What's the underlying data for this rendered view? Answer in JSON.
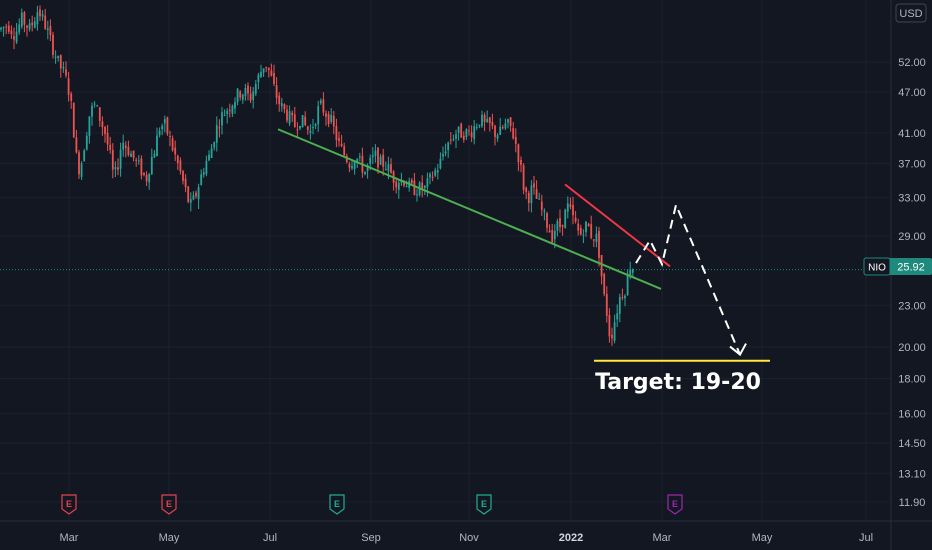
{
  "currency": "USD",
  "ticker": {
    "symbol": "NIO",
    "last": "25.92"
  },
  "colors": {
    "bg": "#131722",
    "up": "#26a69a",
    "down": "#ef5350",
    "trend_green": "#4caf50",
    "trend_red": "#f23645",
    "target_line": "#ffeb3b",
    "arrow": "#ffffff",
    "axis_text": "#b2b5be",
    "earnings_red": "#e2434f",
    "earnings_teal": "#22ab94",
    "earnings_purple": "#9c27b0"
  },
  "annotation": {
    "target_label": "Target: 19-20"
  },
  "chart_data": {
    "type": "candlestick",
    "yscale": "log",
    "ylim": [
      11.2,
      64
    ],
    "yticks": [
      "52.00",
      "47.00",
      "41.00",
      "37.00",
      "33.00",
      "29.00",
      "23.00",
      "20.00",
      "18.00",
      "16.00",
      "14.50",
      "13.10",
      "11.90"
    ],
    "months": [
      {
        "label": "Mar",
        "bold": false
      },
      {
        "label": "May",
        "bold": false
      },
      {
        "label": "Jul",
        "bold": false
      },
      {
        "label": "Sep",
        "bold": false
      },
      {
        "label": "Nov",
        "bold": false
      },
      {
        "label": "2022",
        "bold": true
      },
      {
        "label": "Mar",
        "bold": false
      },
      {
        "label": "May",
        "bold": false
      },
      {
        "label": "Jul",
        "bold": false
      }
    ],
    "price_path": [
      [
        0,
        58
      ],
      [
        8,
        59
      ],
      [
        15,
        57
      ],
      [
        22,
        60
      ],
      [
        30,
        58
      ],
      [
        38,
        62
      ],
      [
        45,
        59
      ],
      [
        52,
        55
      ],
      [
        58,
        52
      ],
      [
        64,
        50
      ],
      [
        68,
        48
      ],
      [
        72,
        44
      ],
      [
        76,
        38
      ],
      [
        80,
        36
      ],
      [
        85,
        40
      ],
      [
        90,
        44
      ],
      [
        95,
        45
      ],
      [
        100,
        43
      ],
      [
        105,
        41
      ],
      [
        110,
        38
      ],
      [
        114,
        35
      ],
      [
        118,
        37
      ],
      [
        122,
        40
      ],
      [
        127,
        39
      ],
      [
        132,
        38
      ],
      [
        137,
        37
      ],
      [
        142,
        36
      ],
      [
        146,
        35
      ],
      [
        150,
        37
      ],
      [
        155,
        39
      ],
      [
        160,
        42
      ],
      [
        165,
        42
      ],
      [
        170,
        40
      ],
      [
        175,
        38
      ],
      [
        180,
        36
      ],
      [
        185,
        34
      ],
      [
        190,
        32
      ],
      [
        195,
        33
      ],
      [
        200,
        35
      ],
      [
        205,
        37
      ],
      [
        210,
        38
      ],
      [
        215,
        41
      ],
      [
        220,
        43
      ],
      [
        225,
        44
      ],
      [
        230,
        45
      ],
      [
        235,
        46
      ],
      [
        240,
        47
      ],
      [
        245,
        47
      ],
      [
        250,
        46
      ],
      [
        255,
        48
      ],
      [
        260,
        50
      ],
      [
        265,
        52
      ],
      [
        270,
        50
      ],
      [
        275,
        47
      ],
      [
        280,
        45
      ],
      [
        285,
        44
      ],
      [
        290,
        43
      ],
      [
        295,
        42
      ],
      [
        300,
        43
      ],
      [
        305,
        42
      ],
      [
        310,
        41
      ],
      [
        315,
        43
      ],
      [
        320,
        45
      ],
      [
        325,
        44
      ],
      [
        330,
        43
      ],
      [
        335,
        41
      ],
      [
        340,
        39
      ],
      [
        345,
        38
      ],
      [
        350,
        37
      ],
      [
        355,
        38
      ],
      [
        360,
        37
      ],
      [
        365,
        36
      ],
      [
        370,
        37
      ],
      [
        375,
        38
      ],
      [
        380,
        37
      ],
      [
        385,
        37
      ],
      [
        390,
        36
      ],
      [
        395,
        35
      ],
      [
        400,
        35
      ],
      [
        405,
        35
      ],
      [
        410,
        34
      ],
      [
        415,
        34
      ],
      [
        420,
        34
      ],
      [
        425,
        34
      ],
      [
        430,
        35
      ],
      [
        435,
        36
      ],
      [
        440,
        37
      ],
      [
        445,
        39
      ],
      [
        450,
        40
      ],
      [
        455,
        41
      ],
      [
        460,
        41
      ],
      [
        465,
        41
      ],
      [
        470,
        41
      ],
      [
        475,
        42
      ],
      [
        480,
        43
      ],
      [
        485,
        42
      ],
      [
        490,
        42
      ],
      [
        495,
        41
      ],
      [
        500,
        41
      ],
      [
        505,
        42
      ],
      [
        510,
        42
      ],
      [
        515,
        40
      ],
      [
        520,
        37
      ],
      [
        524,
        34
      ],
      [
        528,
        33
      ],
      [
        532,
        34
      ],
      [
        536,
        33
      ],
      [
        540,
        32
      ],
      [
        544,
        31
      ],
      [
        548,
        30
      ],
      [
        552,
        29
      ],
      [
        556,
        30
      ],
      [
        560,
        30
      ],
      [
        564,
        31
      ],
      [
        568,
        32
      ],
      [
        572,
        31
      ],
      [
        576,
        30
      ],
      [
        580,
        29
      ],
      [
        584,
        30
      ],
      [
        588,
        30
      ],
      [
        592,
        29
      ],
      [
        596,
        29
      ],
      [
        600,
        27
      ],
      [
        603,
        24
      ],
      [
        606,
        23
      ],
      [
        609,
        21
      ],
      [
        612,
        21
      ],
      [
        615,
        22
      ],
      [
        618,
        23
      ],
      [
        621,
        24
      ],
      [
        624,
        24
      ],
      [
        627,
        25
      ],
      [
        630,
        26
      ],
      [
        633,
        26
      ]
    ],
    "trendlines": {
      "support": {
        "from": [
          278,
          "Jul"
        ],
        "color_key": "trend_green"
      },
      "resistance": {
        "color_key": "trend_red"
      }
    },
    "projection": "down",
    "target": {
      "low": 19,
      "high": 20
    },
    "earnings": [
      {
        "month": "Mar",
        "color_key": "earnings_red"
      },
      {
        "month": "May",
        "color_key": "earnings_red"
      },
      {
        "month": "Sep",
        "color_key": "earnings_teal"
      },
      {
        "month": "Nov",
        "color_key": "earnings_teal"
      },
      {
        "month": "Mar",
        "color_key": "earnings_purple"
      }
    ]
  }
}
